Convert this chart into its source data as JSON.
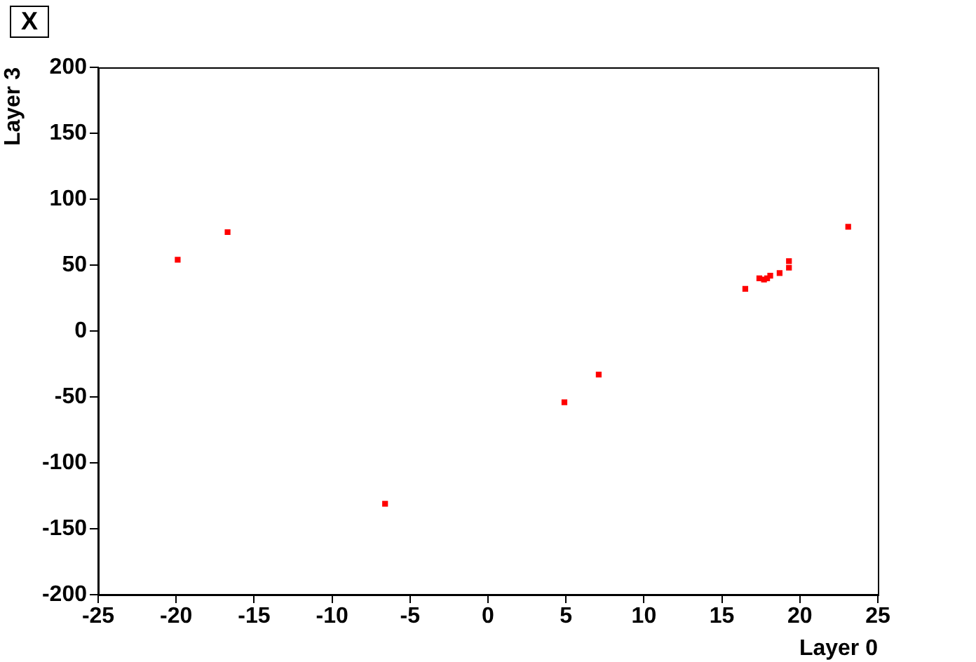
{
  "chart_data": {
    "type": "scatter",
    "title": "X",
    "xlabel": "Layer 0",
    "ylabel": "Layer 3",
    "xlim": [
      -25,
      25
    ],
    "xticks": [
      -25,
      -20,
      -15,
      -10,
      -5,
      0,
      5,
      10,
      15,
      20,
      25
    ],
    "ylim": [
      -200,
      200
    ],
    "yticks": [
      -200,
      -150,
      -100,
      -50,
      0,
      50,
      100,
      150,
      200
    ],
    "grid": false,
    "legend": false,
    "marker": "square",
    "series": [
      {
        "color": "#ff0000",
        "x": [
          -19.9,
          -16.7,
          -6.6,
          4.9,
          7.1,
          16.5,
          17.4,
          17.7,
          17.9,
          18.1,
          18.7,
          19.3,
          19.3,
          23.1
        ],
        "values": [
          54,
          75,
          -131,
          -54,
          -33,
          32,
          40,
          39,
          40,
          42,
          44,
          48,
          53,
          79
        ]
      }
    ]
  }
}
